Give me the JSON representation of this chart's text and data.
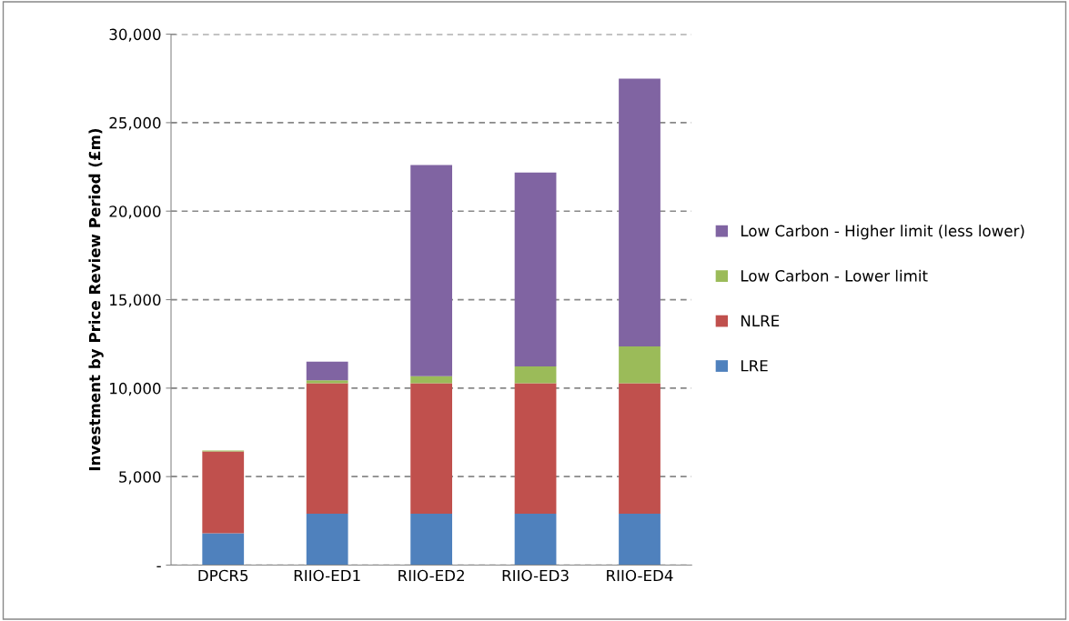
{
  "chart_data": {
    "type": "bar",
    "stacked": true,
    "ylabel": "Investment by Price Review Period (£m)",
    "categories": [
      "DPCR5",
      "RIIO-ED1",
      "RIIO-ED2",
      "RIIO-ED3",
      "RIIO-ED4"
    ],
    "series": [
      {
        "name": "LRE",
        "color": "#4f81bd",
        "values": [
          1800,
          2900,
          2900,
          2900,
          2900
        ]
      },
      {
        "name": "NLRE",
        "color": "#c0504d",
        "values": [
          4620,
          7370,
          7370,
          7370,
          7370
        ]
      },
      {
        "name": "Low Carbon - Lower limit",
        "color": "#9bbb59",
        "values": [
          60,
          170,
          410,
          960,
          2090
        ]
      },
      {
        "name": "Low Carbon - Higher limit (less lower)",
        "color": "#8064a2",
        "values": [
          0,
          1060,
          11930,
          10950,
          15130
        ]
      }
    ],
    "ylim": [
      0,
      30000
    ],
    "yticks": [
      {
        "value": 0,
        "label": "-"
      },
      {
        "value": 5000,
        "label": "5,000"
      },
      {
        "value": 10000,
        "label": "10,000"
      },
      {
        "value": 15000,
        "label": "15,000"
      },
      {
        "value": 20000,
        "label": "20,000"
      },
      {
        "value": 25000,
        "label": "25,000"
      },
      {
        "value": 30000,
        "label": "30,000"
      }
    ],
    "grid": "y",
    "legend": "right"
  }
}
